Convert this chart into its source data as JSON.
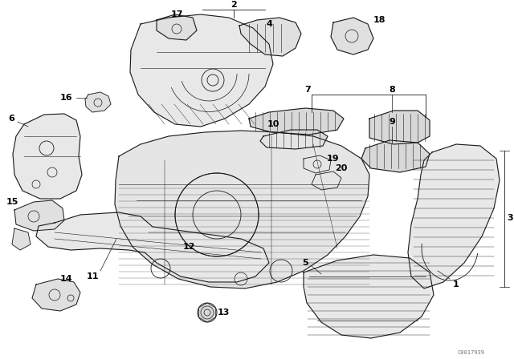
{
  "bg_color": "#ffffff",
  "line_color": "#1a1a1a",
  "watermark": "C0017939",
  "label_fontsize": 8,
  "figsize": [
    6.4,
    4.48
  ],
  "dpi": 100
}
